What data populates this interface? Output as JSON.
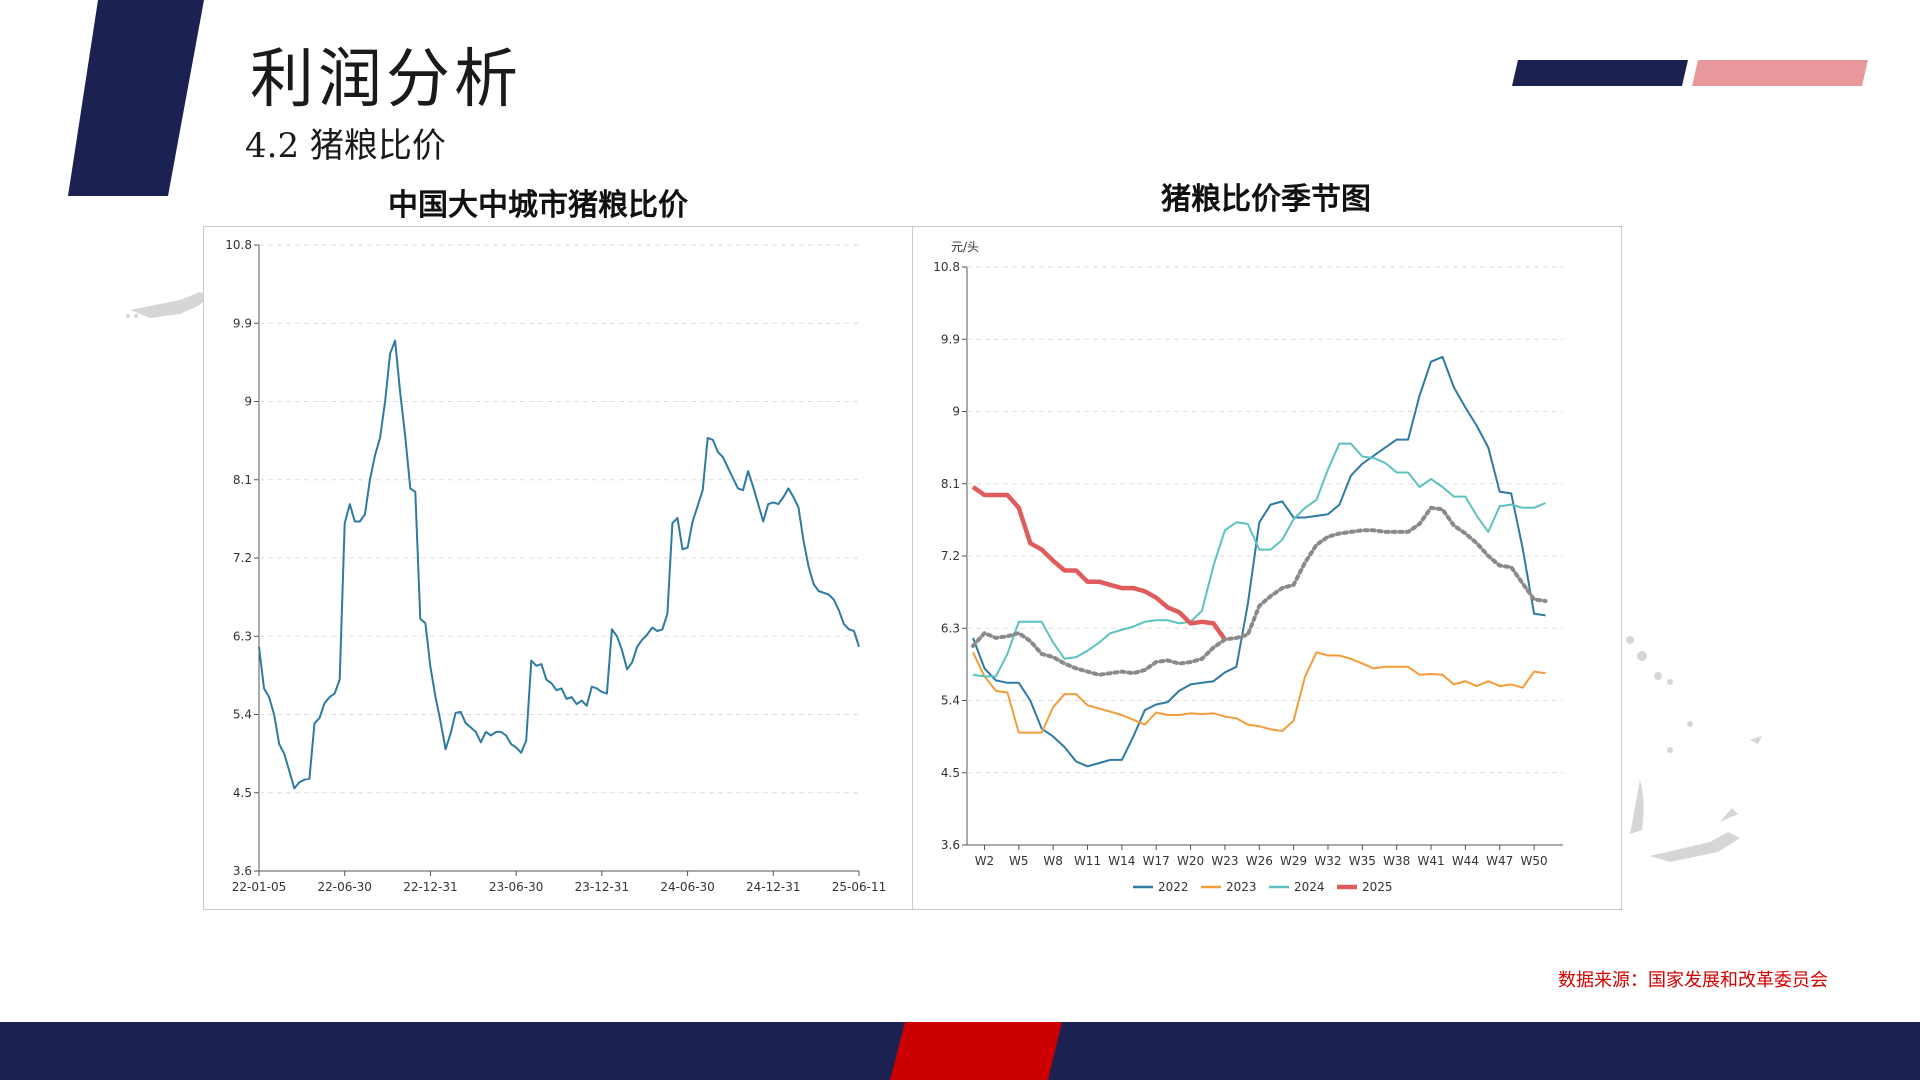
{
  "page": {
    "title": "利润分析",
    "subtitle": "4.2  猪粮比价",
    "source": "数据来源：国家发展和改革委员会",
    "colors": {
      "navy": "#1b2252",
      "pink": "#e8979b",
      "red": "#cc0000"
    }
  },
  "chart_data": [
    {
      "type": "line",
      "title": "中国大中城市猪粮比价",
      "ylim": [
        3.6,
        10.8
      ],
      "yticks": [
        "3.6",
        "4.5",
        "5.4",
        "6.3",
        "7.2",
        "8.1",
        "9",
        "9.9",
        "10.8"
      ],
      "xticks": [
        "22-01-05",
        "22-06-30",
        "22-12-31",
        "23-06-30",
        "23-12-31",
        "24-06-30",
        "24-12-31",
        "25-06-11"
      ],
      "grid": true,
      "series": [
        {
          "color": "#2e7aa1",
          "values": [
            6.18,
            5.7,
            5.6,
            5.4,
            5.06,
            4.95,
            4.75,
            4.55,
            4.62,
            4.65,
            4.66,
            5.3,
            5.36,
            5.53,
            5.6,
            5.64,
            5.8,
            7.6,
            7.82,
            7.62,
            7.62,
            7.7,
            8.1,
            8.38,
            8.58,
            9.0,
            9.55,
            9.7,
            9.1,
            8.6,
            8.0,
            7.96,
            6.5,
            6.45,
            5.95,
            5.6,
            5.32,
            5.0,
            5.18,
            5.42,
            5.43,
            5.3,
            5.25,
            5.2,
            5.08,
            5.2,
            5.16,
            5.2,
            5.2,
            5.16,
            5.06,
            5.02,
            4.96,
            5.1,
            6.02,
            5.96,
            5.98,
            5.8,
            5.76,
            5.68,
            5.7,
            5.58,
            5.6,
            5.52,
            5.56,
            5.5,
            5.72,
            5.7,
            5.66,
            5.64,
            6.38,
            6.3,
            6.14,
            5.92,
            6.0,
            6.18,
            6.26,
            6.32,
            6.4,
            6.36,
            6.38,
            6.56,
            7.6,
            7.66,
            7.3,
            7.32,
            7.62,
            7.8,
            7.98,
            8.58,
            8.56,
            8.42,
            8.36,
            8.24,
            8.12,
            8.0,
            7.98,
            8.2,
            8.02,
            7.82,
            7.62,
            7.82,
            7.84,
            7.82,
            7.9,
            8.0,
            7.9,
            7.78,
            7.4,
            7.1,
            6.9,
            6.82,
            6.8,
            6.78,
            6.72,
            6.6,
            6.44,
            6.38,
            6.36,
            6.18
          ]
        }
      ]
    },
    {
      "type": "line",
      "title": "猪粮比价季节图",
      "ylabel": "元/头",
      "ylim": [
        3.6,
        10.8
      ],
      "yticks": [
        "3.6",
        "4.5",
        "5.4",
        "6.3",
        "7.2",
        "8.1",
        "9",
        "9.9",
        "10.8"
      ],
      "xticks": [
        "W2",
        "W5",
        "W8",
        "W11",
        "W14",
        "W17",
        "W20",
        "W23",
        "W26",
        "W29",
        "W32",
        "W35",
        "W38",
        "W41",
        "W44",
        "W47",
        "W50"
      ],
      "legend_position": "bottom",
      "grid": true,
      "series": [
        {
          "name": "2022",
          "color": "#2e7aa1",
          "x": [
            1,
            2,
            3,
            4,
            5,
            6,
            7,
            8,
            9,
            10,
            11,
            12,
            13,
            14,
            15,
            16,
            17,
            18,
            19,
            20,
            21,
            22,
            23,
            24,
            25,
            26,
            27,
            28,
            29,
            30,
            31,
            32,
            33,
            34,
            35,
            36,
            37,
            38,
            39,
            40,
            41,
            42,
            43,
            44,
            45,
            46,
            47,
            48,
            49,
            50,
            51,
            52
          ],
          "values": [
            6.18,
            5.8,
            5.65,
            5.62,
            5.62,
            5.4,
            5.05,
            4.95,
            4.82,
            4.64,
            4.58,
            4.62,
            4.66,
            4.66,
            4.95,
            5.28,
            5.35,
            5.38,
            5.52,
            5.6,
            5.62,
            5.64,
            5.75,
            5.82,
            6.6,
            7.62,
            7.84,
            7.88,
            7.68,
            7.68,
            7.7,
            7.72,
            7.84,
            8.2,
            8.35,
            8.45,
            8.55,
            8.65,
            8.65,
            9.2,
            9.62,
            9.68,
            9.3,
            9.05,
            8.82,
            8.55,
            8.0,
            7.98,
            7.3,
            6.48,
            6.46,
            null
          ]
        },
        {
          "name": "2023",
          "color": "#f39c3a",
          "x": [
            1,
            2,
            3,
            4,
            5,
            6,
            7,
            8,
            9,
            10,
            11,
            12,
            13,
            14,
            15,
            16,
            17,
            18,
            19,
            20,
            21,
            22,
            23,
            24,
            25,
            26,
            27,
            28,
            29,
            30,
            31,
            32,
            33,
            34,
            35,
            36,
            37,
            38,
            39,
            40,
            41,
            42,
            43,
            44,
            45,
            46,
            47,
            48,
            49,
            50,
            51,
            52
          ],
          "values": [
            6.0,
            5.7,
            5.52,
            5.5,
            5.0,
            5.0,
            5.0,
            5.32,
            5.48,
            5.48,
            5.34,
            5.3,
            5.26,
            5.22,
            5.16,
            5.1,
            5.25,
            5.22,
            5.22,
            5.24,
            5.23,
            5.24,
            5.2,
            5.18,
            5.1,
            5.08,
            5.04,
            5.02,
            5.15,
            5.7,
            6.0,
            5.96,
            5.96,
            5.92,
            5.86,
            5.8,
            5.82,
            5.82,
            5.82,
            5.72,
            5.73,
            5.72,
            5.6,
            5.64,
            5.58,
            5.64,
            5.58,
            5.6,
            5.56,
            5.76,
            5.74,
            null
          ]
        },
        {
          "name": "2024",
          "color": "#5cc2c0",
          "x": [
            1,
            2,
            3,
            4,
            5,
            6,
            7,
            8,
            9,
            10,
            11,
            12,
            13,
            14,
            15,
            16,
            17,
            18,
            19,
            20,
            21,
            22,
            23,
            24,
            25,
            26,
            27,
            28,
            29,
            30,
            31,
            32,
            33,
            34,
            35,
            36,
            37,
            38,
            39,
            40,
            41,
            42,
            43,
            44,
            45,
            46,
            47,
            48,
            49,
            50,
            51,
            52
          ],
          "values": [
            5.72,
            5.7,
            5.7,
            5.98,
            6.38,
            6.38,
            6.38,
            6.12,
            5.92,
            5.94,
            6.02,
            6.12,
            6.24,
            6.28,
            6.32,
            6.38,
            6.4,
            6.4,
            6.36,
            6.38,
            6.52,
            7.08,
            7.52,
            7.62,
            7.6,
            7.28,
            7.28,
            7.4,
            7.66,
            7.8,
            7.9,
            8.28,
            8.6,
            8.6,
            8.44,
            8.42,
            8.36,
            8.24,
            8.24,
            8.06,
            8.16,
            8.06,
            7.94,
            7.94,
            7.7,
            7.5,
            7.82,
            7.84,
            7.8,
            7.8,
            7.86,
            null
          ]
        },
        {
          "name": "2025",
          "color": "#e05b5b",
          "x": [
            1,
            2,
            3,
            4,
            5,
            6,
            7,
            8,
            9,
            10,
            11,
            12,
            13,
            14,
            15,
            16,
            17,
            18,
            19,
            20,
            21,
            22,
            23,
            24
          ],
          "values": [
            8.06,
            7.96,
            7.96,
            7.96,
            7.8,
            7.36,
            7.28,
            7.14,
            7.02,
            7.02,
            6.88,
            6.88,
            6.84,
            6.8,
            6.8,
            6.76,
            6.68,
            6.56,
            6.5,
            6.36,
            6.38,
            6.36,
            6.16,
            null
          ]
        },
        {
          "color": "#8a8a8a",
          "dashed": true,
          "x": [
            1,
            2,
            3,
            4,
            5,
            6,
            7,
            8,
            9,
            10,
            11,
            12,
            13,
            14,
            15,
            16,
            17,
            18,
            19,
            20,
            21,
            22,
            23,
            24,
            25,
            26,
            27,
            28,
            29,
            30,
            31,
            32,
            33,
            34,
            35,
            36,
            37,
            38,
            39,
            40,
            41,
            42,
            43,
            44,
            45,
            46,
            47,
            48,
            49,
            50,
            51,
            52
          ],
          "values": [
            6.08,
            6.24,
            6.18,
            6.2,
            6.24,
            6.14,
            5.98,
            5.94,
            5.86,
            5.8,
            5.76,
            5.72,
            5.74,
            5.76,
            5.74,
            5.78,
            5.88,
            5.9,
            5.86,
            5.88,
            5.92,
            6.06,
            6.16,
            6.18,
            6.22,
            6.58,
            6.7,
            6.8,
            6.84,
            7.12,
            7.34,
            7.44,
            7.48,
            7.5,
            7.52,
            7.52,
            7.5,
            7.5,
            7.5,
            7.6,
            7.8,
            7.78,
            7.58,
            7.48,
            7.36,
            7.2,
            7.08,
            7.06,
            6.86,
            6.66,
            6.64,
            null
          ]
        }
      ]
    }
  ]
}
